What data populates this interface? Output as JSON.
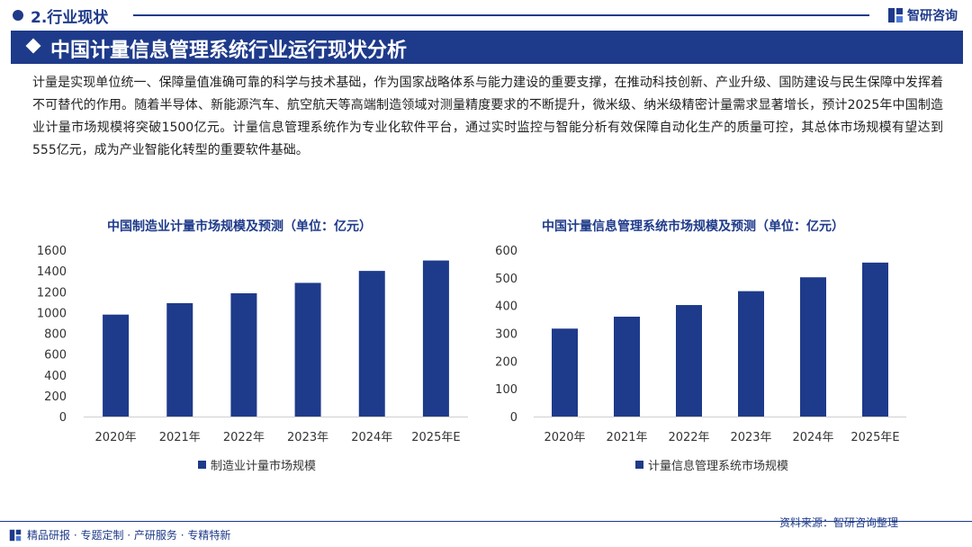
{
  "header": {
    "section_label": "2.行业现状",
    "brand_name": "智研咨询",
    "title": "中国计量信息管理系统行业运行现状分析"
  },
  "intro_text": "计量是实现单位统一、保障量值准确可靠的科学与技术基础，作为国家战略体系与能力建设的重要支撑，在推动科技创新、产业升级、国防建设与民生保障中发挥着不可替代的作用。随着半导体、新能源汽车、航空航天等高端制造领域对测量精度要求的不断提升，微米级、纳米级精密计量需求显著增长，预计2025年中国制造业计量市场规模将突破1500亿元。计量信息管理系统作为专业化软件平台，通过实时监控与智能分析有效保障自动化生产的质量可控，其总体市场规模有望达到555亿元，成为产业智能化转型的重要软件基础。",
  "colors": {
    "brand": "#1e3a8a",
    "bar": "#1e3a8a",
    "axis": "#cfcfcf"
  },
  "chart_data": [
    {
      "type": "bar",
      "title": "中国制造业计量市场规模及预测（单位：亿元）",
      "categories": [
        "2020年",
        "2021年",
        "2022年",
        "2023年",
        "2024年",
        "2025年E"
      ],
      "series": [
        {
          "name": "制造业计量市场规模",
          "values": [
            980,
            1090,
            1185,
            1285,
            1400,
            1500
          ]
        }
      ],
      "ylim": [
        0,
        1600
      ],
      "yticks": [
        0,
        200,
        400,
        600,
        800,
        1000,
        1200,
        1400,
        1600
      ],
      "grid": false,
      "legend": "bottom"
    },
    {
      "type": "bar",
      "title": "中国计量信息管理系统市场规模及预测（单位：亿元）",
      "categories": [
        "2020年",
        "2021年",
        "2022年",
        "2023年",
        "2024年",
        "2025年E"
      ],
      "series": [
        {
          "name": "计量信息管理系统市场规模",
          "values": [
            317,
            360,
            402,
            452,
            502,
            555
          ]
        }
      ],
      "ylim": [
        0,
        600
      ],
      "yticks": [
        0,
        100,
        200,
        300,
        400,
        500,
        600
      ],
      "grid": false,
      "legend": "bottom"
    }
  ],
  "footer": {
    "services": "精品研报 · 专题定制 · 产研服务 · 专精特新",
    "source": "资料来源：智研咨询整理"
  }
}
